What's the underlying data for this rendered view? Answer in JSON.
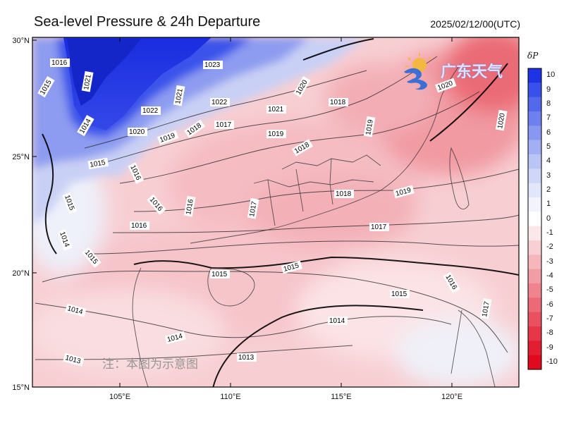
{
  "header": {
    "title": "Sea-level Pressure & 24h Departure",
    "datetime": "2025/02/12/00(UTC)"
  },
  "watermark": {
    "logo_text": "广东天气",
    "note": "注：本图为示意图"
  },
  "axes": {
    "lon_ticks": [
      "105°E",
      "110°E",
      "115°E",
      "120°E"
    ],
    "lat_ticks": [
      "30°N",
      "25°N",
      "20°N",
      "15°N"
    ],
    "lon_range": [
      101,
      123.5
    ],
    "lat_range": [
      15,
      30
    ]
  },
  "colorbar": {
    "label": "δP",
    "ticks": [
      "10",
      "9",
      "8",
      "7",
      "6",
      "5",
      "4",
      "3",
      "2",
      "1",
      "0",
      "-1",
      "-2",
      "-3",
      "-4",
      "-5",
      "-6",
      "-7",
      "-8",
      "-9",
      "-10"
    ],
    "colors": [
      "#1e32e6",
      "#3a50ea",
      "#5468ec",
      "#6e80ee",
      "#8898f0",
      "#a2b0f3",
      "#bac4f5",
      "#cfd6f8",
      "#e2e6fa",
      "#f2f3fc",
      "#ffffff",
      "#fce8ea",
      "#f8cfd3",
      "#f5b6bc",
      "#f29ca5",
      "#ef838e",
      "#ec6a77",
      "#e95060",
      "#e63749",
      "#e31e32",
      "#e00a1f"
    ]
  },
  "isobar_labels": [
    {
      "text": "1016"
    },
    {
      "text": "1015"
    },
    {
      "text": "1021"
    },
    {
      "text": "1023"
    },
    {
      "text": "1022"
    },
    {
      "text": "1021"
    },
    {
      "text": "1022"
    },
    {
      "text": "1020"
    },
    {
      "text": "1014"
    },
    {
      "text": "1020"
    },
    {
      "text": "1019"
    },
    {
      "text": "1018"
    },
    {
      "text": "1017"
    },
    {
      "text": "1021"
    },
    {
      "text": "1019"
    },
    {
      "text": "1018"
    },
    {
      "text": "1018"
    },
    {
      "text": "1019"
    },
    {
      "text": "1020"
    },
    {
      "text": "1020"
    },
    {
      "text": "1015"
    },
    {
      "text": "1015"
    },
    {
      "text": "1016"
    },
    {
      "text": "1016"
    },
    {
      "text": "1016"
    },
    {
      "text": "1017"
    },
    {
      "text": "1018"
    },
    {
      "text": "1019"
    },
    {
      "text": "1017"
    },
    {
      "text": "1016"
    },
    {
      "text": "1014"
    },
    {
      "text": "1015"
    },
    {
      "text": "1015"
    },
    {
      "text": "1015"
    },
    {
      "text": "1014"
    },
    {
      "text": "1015"
    },
    {
      "text": "1016"
    },
    {
      "text": "1017"
    },
    {
      "text": "1014"
    },
    {
      "text": "1014"
    },
    {
      "text": "1013"
    },
    {
      "text": "1013"
    }
  ]
}
